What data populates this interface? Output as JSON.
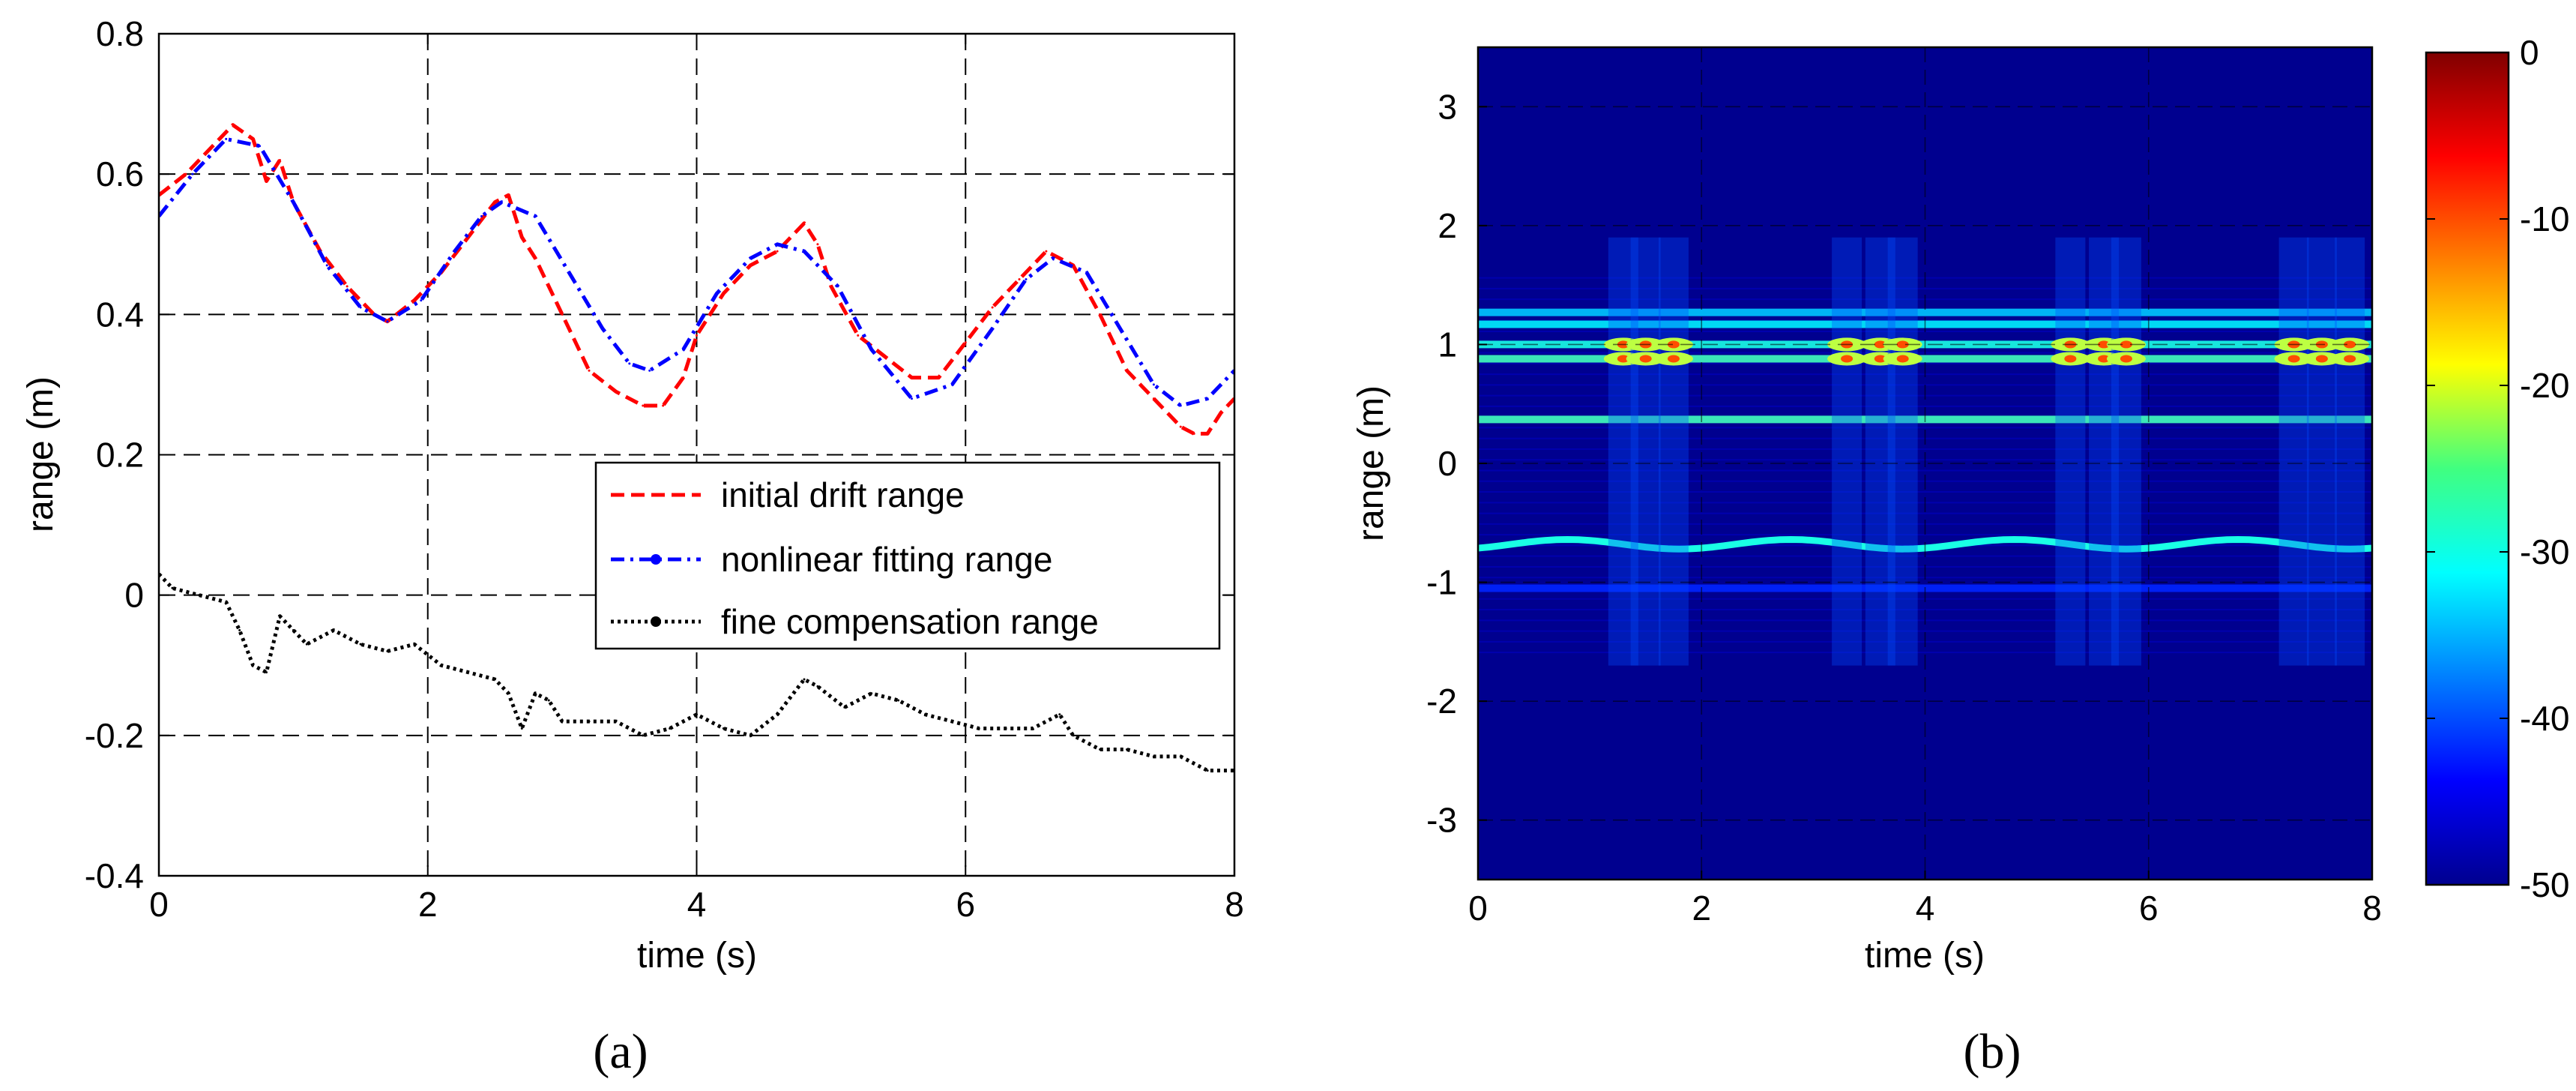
{
  "panels": {
    "a": {
      "label": "(a)"
    },
    "b": {
      "label": "(b)"
    }
  },
  "chart_data": [
    {
      "type": "line",
      "panel": "(a)",
      "title": "",
      "xlabel": "time (s)",
      "ylabel": "range (m)",
      "xlim": [
        0,
        8
      ],
      "ylim": [
        -0.4,
        0.8
      ],
      "xticks": [
        0,
        2,
        4,
        6,
        8
      ],
      "xtick_labels": [
        "0",
        "2",
        "4",
        "6",
        "8"
      ],
      "yticks": [
        -0.4,
        -0.2,
        0,
        0.2,
        0.4,
        0.6,
        0.8
      ],
      "ytick_labels": [
        "-0.4",
        "-0.2",
        "0",
        "0.2",
        "0.4",
        "0.6",
        "0.8"
      ],
      "grid": true,
      "legend_position": "lower-right",
      "series": [
        {
          "name": "initial drift range",
          "color": "#ff0000",
          "style": "dashed",
          "x": [
            0,
            0.2,
            0.4,
            0.55,
            0.7,
            0.8,
            0.9,
            1.0,
            1.2,
            1.4,
            1.6,
            1.7,
            1.9,
            2.1,
            2.3,
            2.5,
            2.6,
            2.7,
            2.8,
            3.0,
            3.2,
            3.4,
            3.6,
            3.75,
            3.9,
            4.0,
            4.2,
            4.4,
            4.6,
            4.8,
            4.9,
            5.0,
            5.2,
            5.4,
            5.6,
            5.8,
            6.0,
            6.2,
            6.4,
            6.6,
            6.8,
            7.0,
            7.2,
            7.4,
            7.6,
            7.7,
            7.8,
            7.9,
            8.0
          ],
          "values": [
            0.57,
            0.6,
            0.64,
            0.67,
            0.65,
            0.59,
            0.62,
            0.56,
            0.49,
            0.44,
            0.4,
            0.39,
            0.42,
            0.46,
            0.51,
            0.56,
            0.57,
            0.51,
            0.48,
            0.4,
            0.32,
            0.29,
            0.27,
            0.27,
            0.31,
            0.37,
            0.43,
            0.47,
            0.49,
            0.53,
            0.5,
            0.44,
            0.37,
            0.34,
            0.31,
            0.31,
            0.36,
            0.41,
            0.45,
            0.49,
            0.47,
            0.4,
            0.32,
            0.28,
            0.24,
            0.23,
            0.23,
            0.26,
            0.28
          ]
        },
        {
          "name": "nonlinear fitting range",
          "color": "#0000ff",
          "style": "dash-dot",
          "x": [
            0,
            0.25,
            0.5,
            0.75,
            1.0,
            1.25,
            1.5,
            1.7,
            1.95,
            2.2,
            2.4,
            2.55,
            2.8,
            3.05,
            3.3,
            3.5,
            3.65,
            3.9,
            4.15,
            4.4,
            4.6,
            4.8,
            5.05,
            5.3,
            5.6,
            5.9,
            6.2,
            6.45,
            6.65,
            6.9,
            7.15,
            7.4,
            7.6,
            7.8,
            8.0
          ],
          "values": [
            0.54,
            0.6,
            0.65,
            0.64,
            0.56,
            0.47,
            0.41,
            0.39,
            0.42,
            0.49,
            0.54,
            0.56,
            0.54,
            0.46,
            0.38,
            0.33,
            0.32,
            0.35,
            0.43,
            0.48,
            0.5,
            0.49,
            0.44,
            0.35,
            0.28,
            0.3,
            0.38,
            0.45,
            0.48,
            0.46,
            0.38,
            0.3,
            0.27,
            0.28,
            0.32
          ]
        },
        {
          "name": "fine compensation range",
          "color": "#000000",
          "style": "dotted",
          "x": [
            0,
            0.1,
            0.3,
            0.5,
            0.6,
            0.7,
            0.8,
            0.9,
            1.0,
            1.1,
            1.3,
            1.5,
            1.7,
            1.9,
            2.1,
            2.3,
            2.5,
            2.6,
            2.7,
            2.8,
            2.9,
            3.0,
            3.2,
            3.4,
            3.6,
            3.8,
            4.0,
            4.2,
            4.4,
            4.6,
            4.8,
            4.9,
            5.1,
            5.3,
            5.5,
            5.7,
            5.9,
            6.1,
            6.3,
            6.5,
            6.7,
            6.8,
            7.0,
            7.2,
            7.4,
            7.6,
            7.8,
            8.0
          ],
          "values": [
            0.03,
            0.01,
            0.0,
            -0.01,
            -0.05,
            -0.1,
            -0.11,
            -0.03,
            -0.05,
            -0.07,
            -0.05,
            -0.07,
            -0.08,
            -0.07,
            -0.1,
            -0.11,
            -0.12,
            -0.14,
            -0.19,
            -0.14,
            -0.15,
            -0.18,
            -0.18,
            -0.18,
            -0.2,
            -0.19,
            -0.17,
            -0.19,
            -0.2,
            -0.17,
            -0.12,
            -0.13,
            -0.16,
            -0.14,
            -0.15,
            -0.17,
            -0.18,
            -0.19,
            -0.19,
            -0.19,
            -0.17,
            -0.2,
            -0.22,
            -0.22,
            -0.23,
            -0.23,
            -0.25,
            -0.25
          ]
        }
      ]
    },
    {
      "type": "heatmap",
      "panel": "(b)",
      "title": "",
      "xlabel": "time (s)",
      "ylabel": "range (m)",
      "xlim": [
        0,
        8
      ],
      "ylim": [
        -3.5,
        3.5
      ],
      "xticks": [
        0,
        2,
        4,
        6,
        8
      ],
      "xtick_labels": [
        "0",
        "2",
        "4",
        "6",
        "8"
      ],
      "yticks": [
        -3,
        -2,
        -1,
        0,
        1,
        2,
        3
      ],
      "ytick_labels": [
        "-3",
        "-2",
        "-1",
        "0",
        "1",
        "2",
        "3"
      ],
      "grid": true,
      "colorbar": {
        "range": [
          -50,
          0
        ],
        "ticks": [
          0,
          -10,
          -20,
          -30,
          -40,
          -50
        ],
        "tick_labels": [
          "0",
          "-10",
          "-20",
          "-30",
          "-40",
          "-50"
        ],
        "colormap": "jet"
      },
      "features": [
        {
          "kind": "horizontal-band",
          "range_m": 0.37,
          "level_db": -28
        },
        {
          "kind": "horizontal-band",
          "range_m": 1.0,
          "level_db": -30
        },
        {
          "kind": "horizontal-band",
          "range_m": 0.88,
          "level_db": -28
        },
        {
          "kind": "horizontal-band",
          "range_m": 1.17,
          "level_db": -32
        },
        {
          "kind": "horizontal-band",
          "range_m": 1.27,
          "level_db": -34
        },
        {
          "kind": "horizontal-band",
          "range_m": -1.05,
          "level_db": -42
        },
        {
          "kind": "sinusoid",
          "center_m": -0.68,
          "amplitude_m": 0.04,
          "period_s": 2.0,
          "level_db": -30
        },
        {
          "kind": "periodic-hotspots",
          "times_s": [
            1.3,
            1.5,
            1.75,
            3.3,
            3.6,
            3.8,
            5.3,
            5.6,
            5.8,
            7.3,
            7.55,
            7.8
          ],
          "ranges_m": [
            1.0,
            0.88
          ],
          "level_db": -10
        }
      ]
    }
  ]
}
